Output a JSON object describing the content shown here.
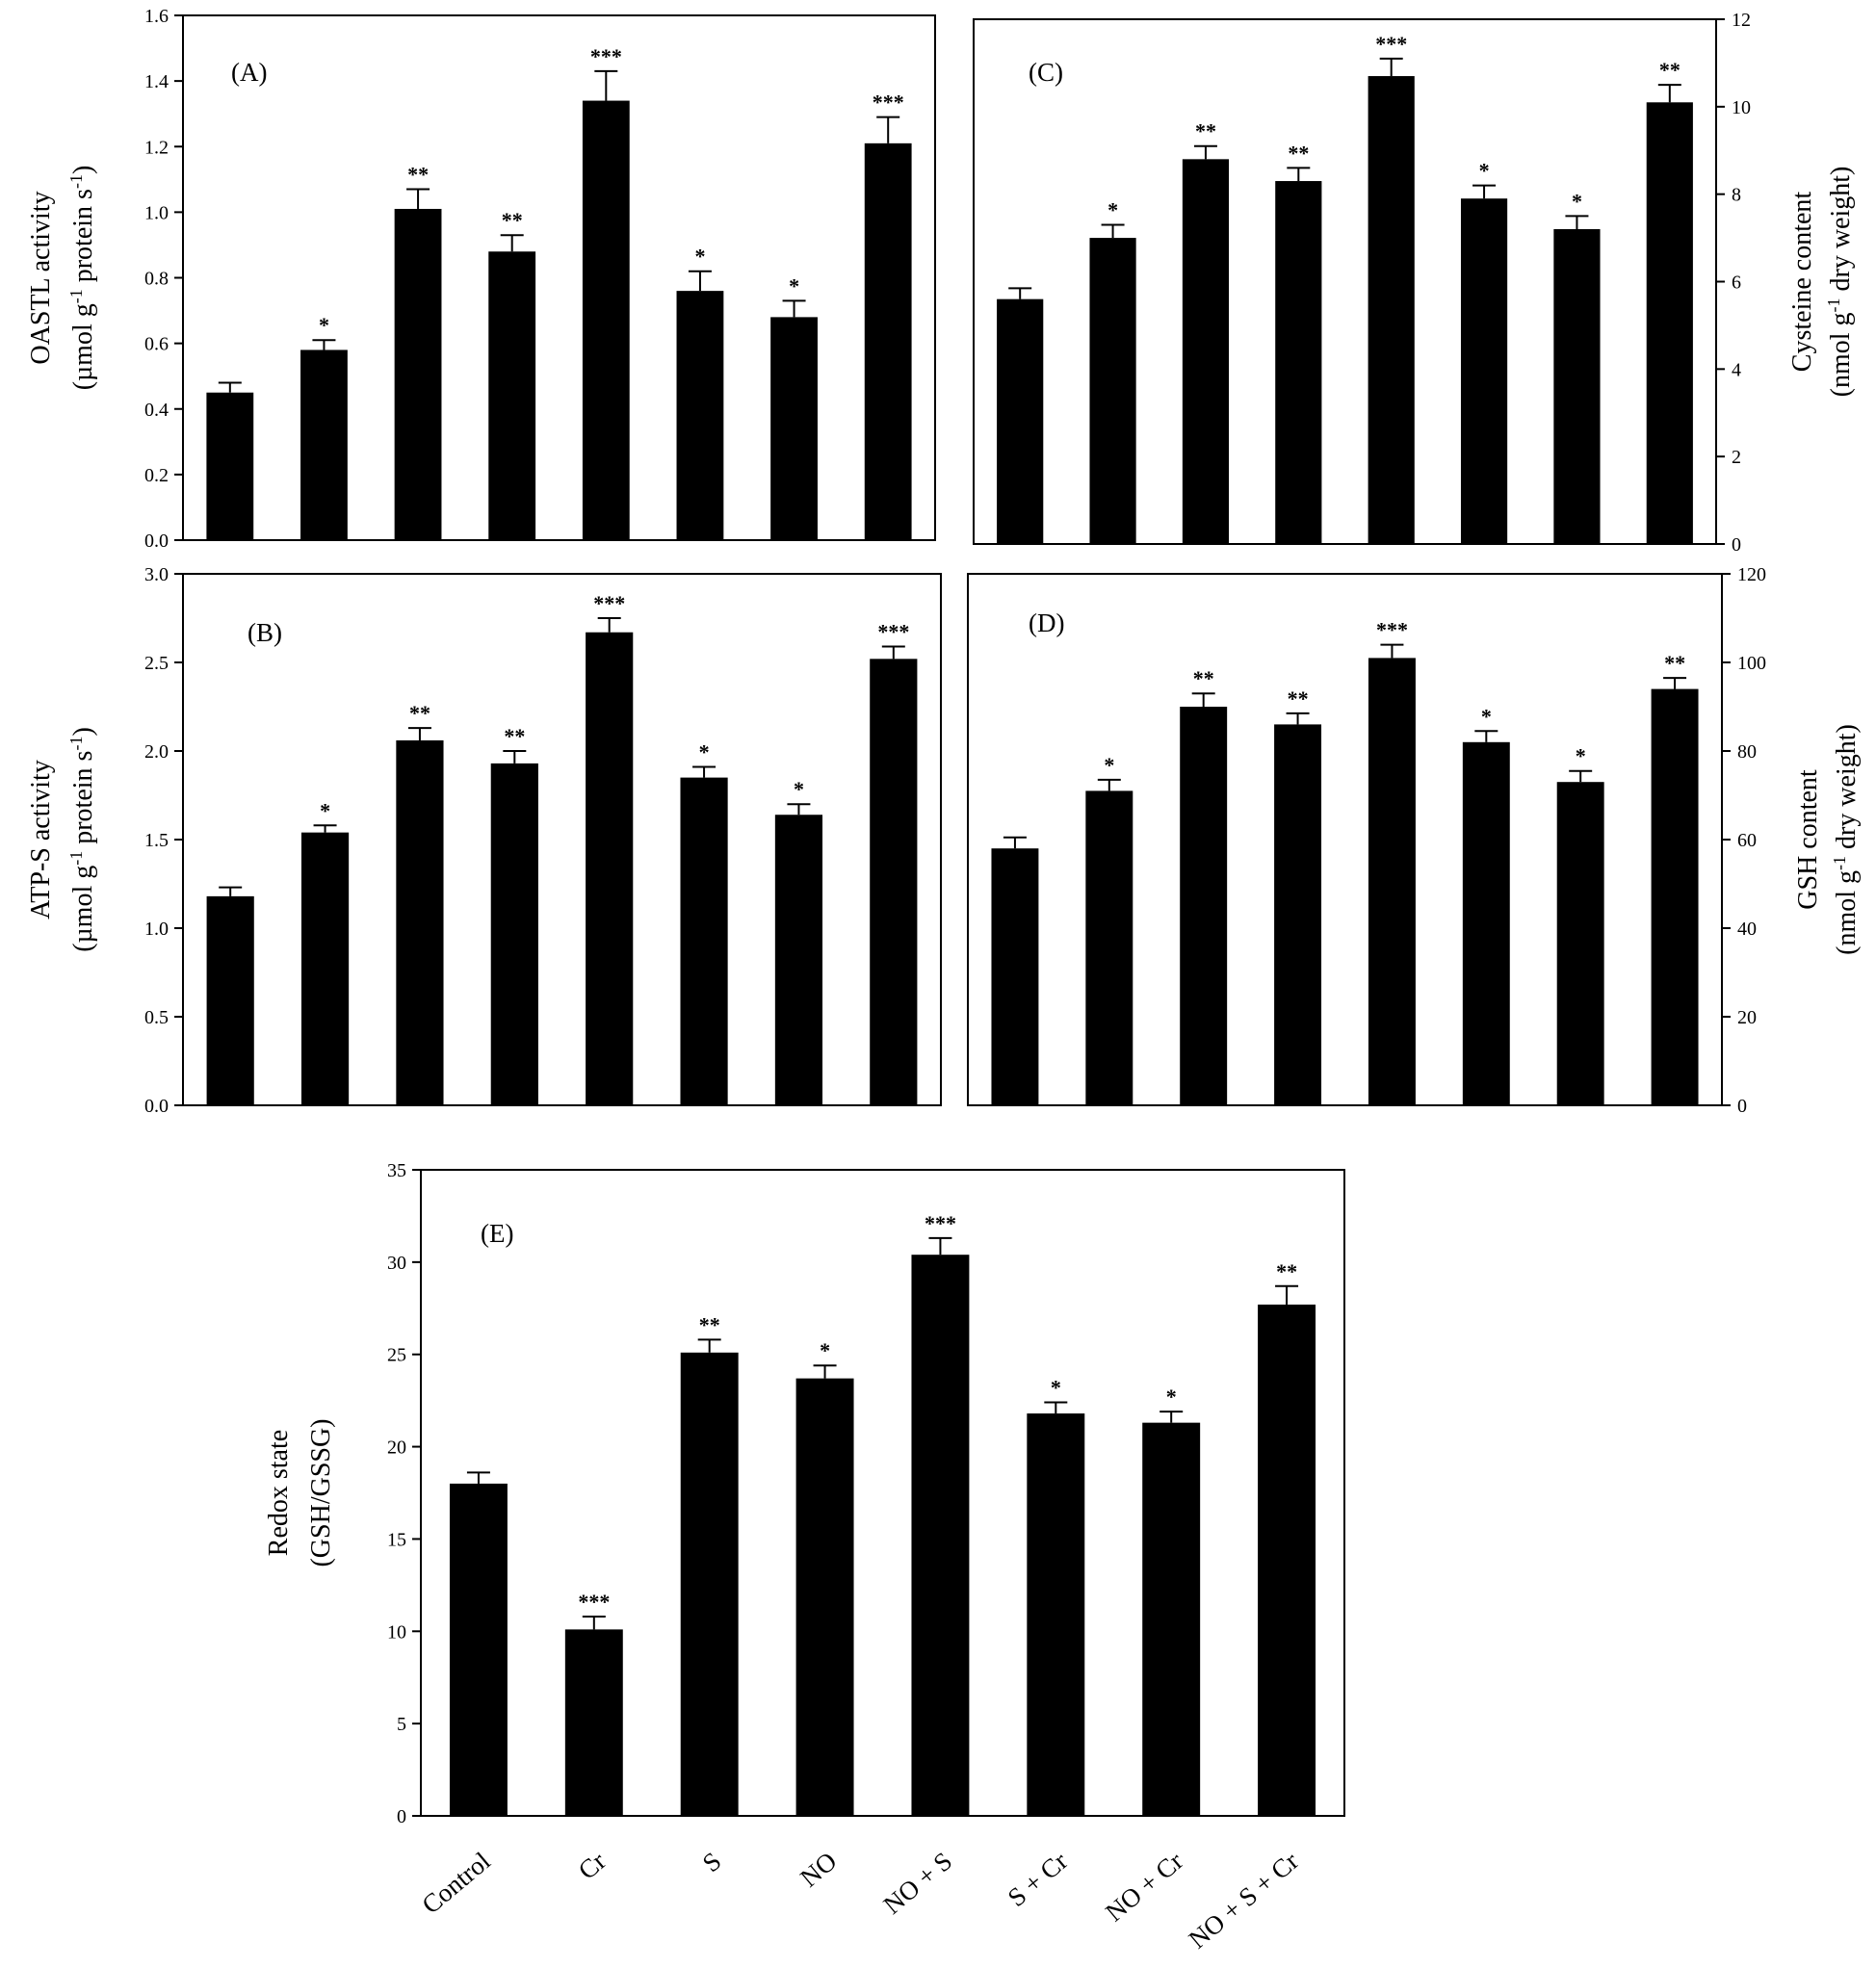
{
  "categories": [
    "Control",
    "Cr",
    "S",
    "NO",
    "NO + S",
    "S + Cr",
    "NO + Cr",
    "NO + S + Cr"
  ],
  "colors": {
    "bar": "#000000",
    "axis": "#000000",
    "background": "#ffffff"
  },
  "chart_data": [
    {
      "id": "A",
      "type": "bar",
      "panel_label": "(A)",
      "ylabel_line1": "OASTL activity",
      "ylabel_line2_parts": [
        "(µmol g",
        "-1",
        " protein s",
        "-1",
        ")"
      ],
      "ylim": [
        0,
        1.6
      ],
      "yticks": [
        0.0,
        0.2,
        0.4,
        0.6,
        0.8,
        1.0,
        1.2,
        1.4,
        1.6
      ],
      "tick_decimals": 1,
      "axis_side": "left",
      "values": [
        0.45,
        0.58,
        1.01,
        0.88,
        1.34,
        0.76,
        0.68,
        1.21
      ],
      "errors": [
        0.03,
        0.03,
        0.06,
        0.05,
        0.09,
        0.06,
        0.05,
        0.08
      ],
      "significance": [
        "",
        "*",
        "**",
        "**",
        "***",
        "*",
        "*",
        "***"
      ]
    },
    {
      "id": "B",
      "type": "bar",
      "panel_label": "(B)",
      "ylabel_line1": "ATP-S activity",
      "ylabel_line2_parts": [
        "(µmol g",
        "-1",
        " protein s",
        "-1",
        ")"
      ],
      "ylim": [
        0,
        3.0
      ],
      "yticks": [
        0.0,
        0.5,
        1.0,
        1.5,
        2.0,
        2.5,
        3.0
      ],
      "tick_decimals": 1,
      "axis_side": "left",
      "values": [
        1.18,
        1.54,
        2.06,
        1.93,
        2.67,
        1.85,
        1.64,
        2.52
      ],
      "errors": [
        0.05,
        0.04,
        0.07,
        0.07,
        0.08,
        0.06,
        0.06,
        0.07
      ],
      "significance": [
        "",
        "*",
        "**",
        "**",
        "***",
        "*",
        "*",
        "***"
      ]
    },
    {
      "id": "C",
      "type": "bar",
      "panel_label": "(C)",
      "ylabel_line1": "Cysteine content",
      "ylabel_line2_parts": [
        "(nmol g",
        "-1",
        " dry weight)"
      ],
      "ylim": [
        0,
        12
      ],
      "yticks": [
        0,
        2,
        4,
        6,
        8,
        10,
        12
      ],
      "tick_decimals": 0,
      "axis_side": "right",
      "values": [
        5.6,
        7.0,
        8.8,
        8.3,
        10.7,
        7.9,
        7.2,
        10.1
      ],
      "errors": [
        0.25,
        0.3,
        0.3,
        0.3,
        0.4,
        0.3,
        0.3,
        0.4
      ],
      "significance": [
        "",
        "*",
        "**",
        "**",
        "***",
        "*",
        "*",
        "**"
      ]
    },
    {
      "id": "D",
      "type": "bar",
      "panel_label": "(D)",
      "ylabel_line1": "GSH content",
      "ylabel_line2_parts": [
        "(nmol g",
        "-1",
        " dry weight)"
      ],
      "ylim": [
        0,
        120
      ],
      "yticks": [
        0,
        20,
        40,
        60,
        80,
        100,
        120
      ],
      "tick_decimals": 0,
      "axis_side": "right",
      "values": [
        58,
        71,
        90,
        86,
        101,
        82,
        73,
        94
      ],
      "errors": [
        2.5,
        2.5,
        3,
        2.5,
        3,
        2.5,
        2.5,
        2.5
      ],
      "significance": [
        "",
        "*",
        "**",
        "**",
        "***",
        "*",
        "*",
        "**"
      ]
    },
    {
      "id": "E",
      "type": "bar",
      "panel_label": "(E)",
      "ylabel_line1": "Redox state",
      "ylabel_line2_parts": [
        "(GSH/GSSG)"
      ],
      "ylim": [
        0,
        35
      ],
      "yticks": [
        0,
        5,
        10,
        15,
        20,
        25,
        30,
        35
      ],
      "tick_decimals": 0,
      "axis_side": "left",
      "values": [
        18.0,
        10.1,
        25.1,
        23.7,
        30.4,
        21.8,
        21.3,
        27.7
      ],
      "errors": [
        0.6,
        0.7,
        0.7,
        0.7,
        0.9,
        0.6,
        0.6,
        1.0
      ],
      "significance": [
        "",
        "***",
        "**",
        "*",
        "***",
        "*",
        "*",
        "**"
      ],
      "show_category_labels": true
    }
  ]
}
